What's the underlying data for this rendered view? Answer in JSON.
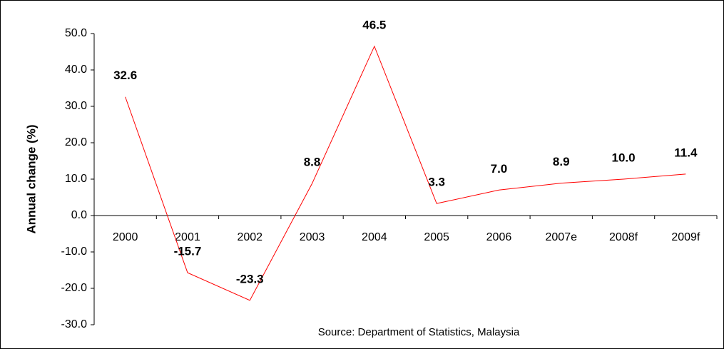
{
  "chart_data": {
    "type": "line",
    "y_label": "Annual change (%)",
    "source": "Source: Department of Statistics, Malaysia",
    "categories": [
      "2000",
      "2001",
      "2002",
      "2003",
      "2004",
      "2005",
      "2006",
      "2007e",
      "2008f",
      "2009f"
    ],
    "values": [
      32.6,
      -15.7,
      -23.3,
      8.8,
      46.5,
      3.3,
      7.0,
      8.9,
      10.0,
      11.4
    ],
    "value_labels": [
      "32.6",
      "-15.7",
      "-23.3",
      "8.8",
      "46.5",
      "3.3",
      "7.0",
      "8.9",
      "10.0",
      "11.4"
    ],
    "color": "#ff0000",
    "ylim": [
      -30,
      50
    ],
    "yticks": [
      {
        "value": -30,
        "label": "-30.0"
      },
      {
        "value": -20,
        "label": "-20.0"
      },
      {
        "value": -10,
        "label": "-10.0"
      },
      {
        "value": 0,
        "label": "0.0"
      },
      {
        "value": 10,
        "label": "10.0"
      },
      {
        "value": 20,
        "label": "20.0"
      },
      {
        "value": 30,
        "label": "30.0"
      },
      {
        "value": 40,
        "label": "40.0"
      },
      {
        "value": 50,
        "label": "50.0"
      }
    ],
    "grid": false
  }
}
